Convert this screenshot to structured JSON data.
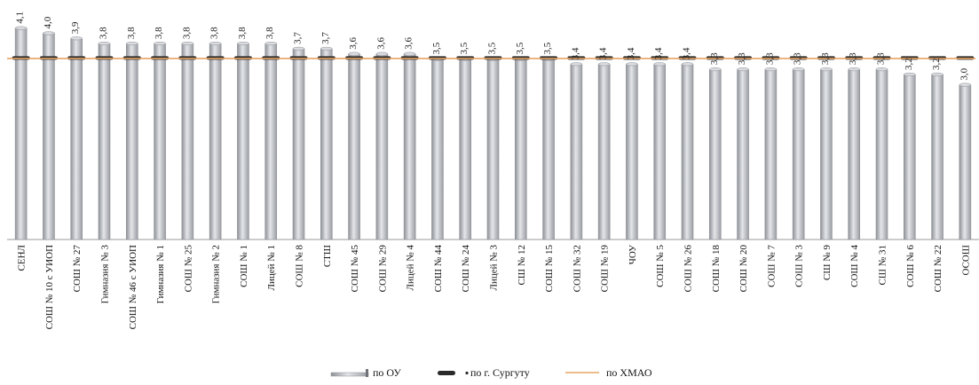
{
  "chart_data": {
    "type": "bar",
    "categories": [
      "СЕНЛ",
      "СОШ № 10 с УИОП",
      "СОШ № 27",
      "Гимназия № 3",
      "СОШ № 46 с УИОП",
      "Гимназия № 1",
      "СОШ № 25",
      "Гимназия № 2",
      "СОШ № 1",
      "Лицей № 1",
      "СОШ № 8",
      "СТШ",
      "СОШ № 45",
      "СОШ № 29",
      "Лицей № 4",
      "СОШ № 44",
      "СОШ № 24",
      "Лицей № 3",
      "СШ № 12",
      "СОШ № 15",
      "СОШ № 32",
      "СОШ № 19",
      "ЧОУ",
      "СОШ № 5",
      "СОШ № 26",
      "СОШ № 18",
      "СОШ № 20",
      "СОШ № 7",
      "СОШ № 3",
      "СШ № 9",
      "СОШ № 4",
      "СШ № 31",
      "СОШ № 6",
      "СОШ № 22",
      "ОСОШ"
    ],
    "series": [
      {
        "name": "по ОУ",
        "values": [
          4.1,
          4.0,
          3.9,
          3.8,
          3.8,
          3.8,
          3.8,
          3.8,
          3.8,
          3.8,
          3.7,
          3.7,
          3.6,
          3.6,
          3.6,
          3.5,
          3.5,
          3.5,
          3.5,
          3.5,
          3.4,
          3.4,
          3.4,
          3.4,
          3.4,
          3.3,
          3.3,
          3.3,
          3.3,
          3.3,
          3.3,
          3.3,
          3.2,
          3.2,
          3.0
        ]
      },
      {
        "name": "по г. Сургуту",
        "values": [
          3.52,
          3.52,
          3.52,
          3.52,
          3.52,
          3.52,
          3.52,
          3.52,
          3.52,
          3.52,
          3.52,
          3.52,
          3.52,
          3.52,
          3.52,
          3.52,
          3.52,
          3.52,
          3.52,
          3.52,
          3.52,
          3.52,
          3.52,
          3.52,
          3.52,
          3.52,
          3.52,
          3.52,
          3.52,
          3.52,
          3.52,
          3.52,
          3.52,
          3.52,
          3.52
        ]
      },
      {
        "name": "по ХМАО",
        "values": [
          3.51,
          3.51,
          3.51,
          3.51,
          3.51,
          3.51,
          3.51,
          3.51,
          3.51,
          3.51,
          3.51,
          3.51,
          3.51,
          3.51,
          3.51,
          3.51,
          3.51,
          3.51,
          3.51,
          3.51,
          3.51,
          3.51,
          3.51,
          3.51,
          3.51,
          3.51,
          3.51,
          3.51,
          3.51,
          3.51,
          3.51,
          3.51,
          3.51,
          3.51,
          3.51
        ]
      }
    ],
    "value_labels": [
      "4,1",
      "4,0",
      "3,9",
      "3,8",
      "3,8",
      "3,8",
      "3,8",
      "3,8",
      "3,8",
      "3,8",
      "3,7",
      "3,7",
      "3,6",
      "3,6",
      "3,6",
      "3,5",
      "3,5",
      "3,5",
      "3,5",
      "3,5",
      "3,4",
      "3,4",
      "3,4",
      "3,4",
      "3,4",
      "3,3",
      "3,3",
      "3,3",
      "3,3",
      "3,3",
      "3,3",
      "3,3",
      "3,2",
      "3,2",
      "3,0"
    ],
    "ylim": [
      0,
      4.3
    ],
    "grid": false,
    "legend_placement": "bottom",
    "colors": {
      "bar": "#b9bcc2",
      "bar_edge": "#8e9196",
      "city_marker": "#2a2a2a",
      "region_line": "#e7a364"
    }
  }
}
